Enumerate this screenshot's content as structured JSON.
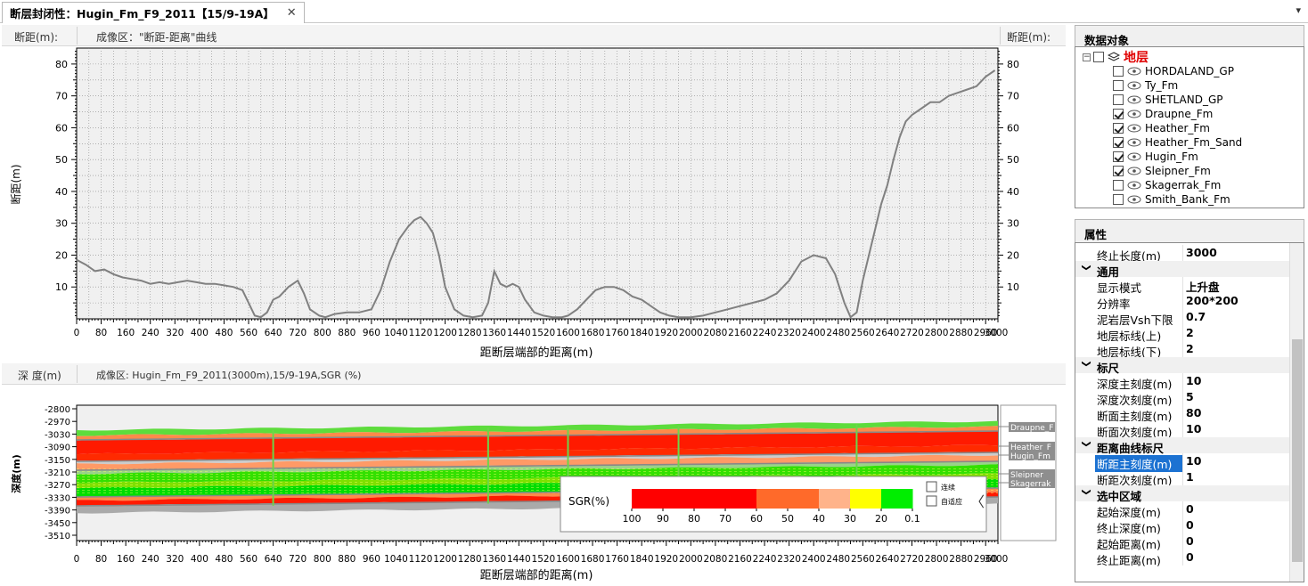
{
  "tab": {
    "title": "断层封闭性：Hugin_Fm_F9_2011【15/9-19A】",
    "close": "✕",
    "menu": "▾"
  },
  "upper": {
    "left_axis_header": "断距(m):",
    "title": "成像区：\"断距-距离\"曲线",
    "right_axis_header": "断距(m):",
    "ylabel": "断距(m)",
    "xlabel": "距断层端部的距离(m)"
  },
  "lower": {
    "left_axis_header": "深 度(m)",
    "title": "成像区: Hugin_Fm_F9_2011(3000m),15/9-19A,SGR (%)",
    "ylabel": "深度(m)",
    "xlabel": "距断层端部的距离(m)",
    "layer_labels": [
      "Draupne_F",
      "Heather_F",
      "Hugin_Fm",
      "Sleipner_",
      "Skagerrak"
    ]
  },
  "legend": {
    "title": "SGR(%)",
    "ticks": [
      "100",
      "90",
      "80",
      "70",
      "60",
      "50",
      "40",
      "30",
      "20",
      "0.1"
    ],
    "colors": [
      "#ff0000",
      "#ff0000",
      "#ff0000",
      "#ff0000",
      "#ff6a2a",
      "#ff6a2a",
      "#ffb38a",
      "#ffff00",
      "#00ee00"
    ],
    "options": [
      "连续",
      "自适应"
    ],
    "collapse_glyph": "〈"
  },
  "data_objects": {
    "title": "数据对象",
    "root": "地层",
    "items": [
      {
        "label": "HORDALAND_GP",
        "checked": false
      },
      {
        "label": "Ty_Fm",
        "checked": false
      },
      {
        "label": "SHETLAND_GP",
        "checked": false
      },
      {
        "label": "Draupne_Fm",
        "checked": true
      },
      {
        "label": "Heather_Fm",
        "checked": true
      },
      {
        "label": "Heather_Fm_Sand",
        "checked": true
      },
      {
        "label": "Hugin_Fm",
        "checked": true
      },
      {
        "label": "Sleipner_Fm",
        "checked": true
      },
      {
        "label": "Skagerrak_Fm",
        "checked": false
      },
      {
        "label": "Smith_Bank_Fm",
        "checked": false
      }
    ]
  },
  "properties": {
    "title": "属性",
    "rows": [
      {
        "type": "prop",
        "key": "终止长度(m)",
        "value": "3000"
      },
      {
        "type": "cat",
        "key": "通用"
      },
      {
        "type": "prop",
        "key": "显示模式",
        "value": "上升盘"
      },
      {
        "type": "prop",
        "key": "分辨率",
        "value": "200*200"
      },
      {
        "type": "prop",
        "key": "泥岩层Vsh下限",
        "value": "0.7"
      },
      {
        "type": "prop",
        "key": "地层标线(上)",
        "value": "2"
      },
      {
        "type": "prop",
        "key": "地层标线(下)",
        "value": "2"
      },
      {
        "type": "cat",
        "key": "标尺"
      },
      {
        "type": "prop",
        "key": "深度主刻度(m)",
        "value": "10"
      },
      {
        "type": "prop",
        "key": "深度次刻度(m)",
        "value": "5"
      },
      {
        "type": "prop",
        "key": "断面主刻度(m)",
        "value": "80"
      },
      {
        "type": "prop",
        "key": "断面次刻度(m)",
        "value": "10"
      },
      {
        "type": "cat",
        "key": "距离曲线标尺"
      },
      {
        "type": "prop",
        "key": "断距主刻度(m)",
        "value": "10",
        "selected": true
      },
      {
        "type": "prop",
        "key": "断距次刻度(m)",
        "value": "1"
      },
      {
        "type": "cat",
        "key": "选中区域"
      },
      {
        "type": "prop",
        "key": "起始深度(m)",
        "value": "0"
      },
      {
        "type": "prop",
        "key": "终止深度(m)",
        "value": "0"
      },
      {
        "type": "prop",
        "key": "起始距离(m)",
        "value": "0"
      },
      {
        "type": "prop",
        "key": "终止距离(m)",
        "value": "0"
      }
    ]
  },
  "chart_data": [
    {
      "type": "line",
      "xlim": [
        0,
        3000
      ],
      "ylim": [
        0,
        85
      ],
      "xticks": [
        0,
        80,
        160,
        240,
        320,
        400,
        480,
        560,
        640,
        720,
        800,
        880,
        960,
        1040,
        1120,
        1200,
        1280,
        1360,
        1440,
        1520,
        1600,
        1680,
        1760,
        1840,
        1920,
        2000,
        2080,
        2160,
        2240,
        2320,
        2400,
        2480,
        2560,
        2640,
        2720,
        2800,
        2880,
        2960
      ],
      "yticks": [
        10,
        20,
        30,
        40,
        50,
        60,
        70,
        80
      ],
      "grid": true,
      "x": [
        0,
        30,
        60,
        90,
        120,
        150,
        180,
        210,
        240,
        270,
        300,
        330,
        360,
        390,
        420,
        450,
        480,
        510,
        540,
        560,
        580,
        600,
        620,
        640,
        660,
        690,
        720,
        740,
        760,
        790,
        810,
        840,
        880,
        920,
        960,
        990,
        1020,
        1050,
        1080,
        1100,
        1120,
        1140,
        1160,
        1180,
        1200,
        1230,
        1260,
        1290,
        1320,
        1340,
        1360,
        1380,
        1400,
        1420,
        1440,
        1460,
        1490,
        1520,
        1550,
        1580,
        1600,
        1630,
        1660,
        1690,
        1720,
        1750,
        1780,
        1810,
        1840,
        1870,
        1900,
        1930,
        1960,
        2000,
        2040,
        2080,
        2120,
        2160,
        2200,
        2240,
        2280,
        2320,
        2360,
        2400,
        2440,
        2470,
        2500,
        2520,
        2540,
        2560,
        2580,
        2600,
        2620,
        2640,
        2660,
        2680,
        2700,
        2720,
        2750,
        2780,
        2810,
        2840,
        2870,
        2900,
        2930,
        2960,
        2990
      ],
      "values": [
        18.5,
        17,
        15,
        15.5,
        14,
        13,
        12.5,
        12,
        11,
        11.5,
        11,
        11.5,
        12,
        11.5,
        11,
        11,
        10.5,
        10,
        9,
        5,
        1,
        0.5,
        2,
        6,
        7,
        10,
        12,
        8,
        3,
        1,
        0.5,
        1.5,
        2,
        2,
        3,
        9,
        18,
        25,
        29,
        31,
        32,
        30,
        27,
        20,
        10,
        3,
        1,
        0.5,
        1,
        5,
        15,
        11,
        10,
        11,
        10,
        6,
        2,
        1,
        0.5,
        0.5,
        1,
        3,
        6,
        9,
        10,
        10,
        9,
        7,
        6,
        4,
        2,
        1,
        0.5,
        0.5,
        1,
        2,
        3,
        4,
        5,
        6,
        8,
        12,
        18,
        20,
        19,
        14,
        5,
        0.5,
        2,
        12,
        20,
        28,
        36,
        42,
        50,
        57,
        62,
        64,
        66,
        68,
        68,
        70,
        71,
        72,
        73,
        76,
        78
      ]
    },
    {
      "type": "heatmap",
      "xlim": [
        0,
        3000
      ],
      "xticks": [
        0,
        80,
        160,
        240,
        320,
        400,
        480,
        560,
        640,
        720,
        800,
        880,
        960,
        1040,
        1120,
        1200,
        1280,
        1360,
        1440,
        1520,
        1600,
        1680,
        1760,
        1840,
        1920,
        2000,
        2080,
        2160,
        2240,
        2320,
        2400,
        2480,
        2560,
        2640,
        2720,
        2800,
        2880,
        2960
      ],
      "yticks": [
        -2800,
        -2970,
        -3030,
        -3090,
        -3150,
        -3210,
        -3270,
        -3330,
        -3390,
        -3450,
        -3510
      ]
    }
  ]
}
